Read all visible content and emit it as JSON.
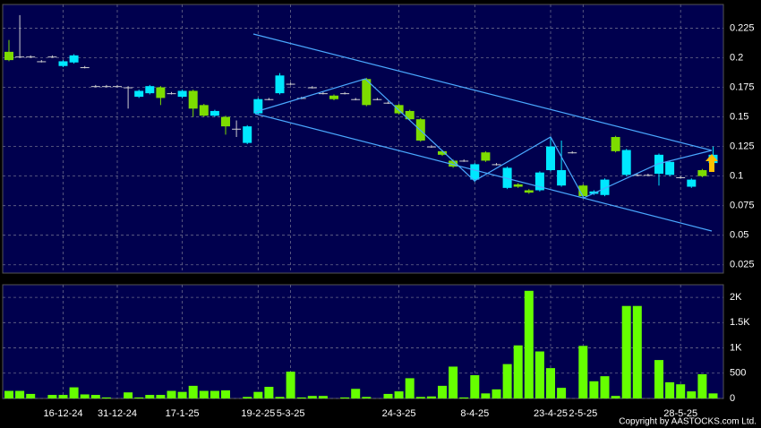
{
  "chart_data": {
    "type": "candlestick",
    "categories": [
      null,
      null,
      null,
      null,
      null,
      "16-12-24",
      null,
      null,
      null,
      null,
      "31-12-24",
      null,
      null,
      null,
      null,
      null,
      "17-1-25",
      null,
      null,
      null,
      null,
      null,
      null,
      "19-2-25",
      null,
      null,
      "5-3-25",
      null,
      null,
      null,
      null,
      null,
      null,
      null,
      null,
      null,
      "24-3-25",
      null,
      null,
      null,
      null,
      null,
      null,
      "8-4-25",
      null,
      null,
      null,
      null,
      null,
      null,
      "23-4-25",
      null,
      null,
      "2-5-25",
      null,
      null,
      null,
      null,
      null,
      null,
      null,
      null,
      "28-5-25",
      null,
      null,
      null
    ],
    "open": [
      0.205,
      0.201,
      0.201,
      0.197,
      0.201,
      0.193,
      0.196,
      0.192,
      0.176,
      0.176,
      0.176,
      0.175,
      0.167,
      0.17,
      0.175,
      0.17,
      0.167,
      0.172,
      0.16,
      0.151,
      0.15,
      0.14,
      0.128,
      0.153,
      0.165,
      0.17,
      0.178,
      0.166,
      0.175,
      0.17,
      0.168,
      0.17,
      0.165,
      0.182,
      0.165,
      0.162,
      0.16,
      0.155,
      0.148,
      0.125,
      0.121,
      0.113,
      0.113,
      0.097,
      0.12,
      0.11,
      0.09,
      0.093,
      0.088,
      0.088,
      0.105,
      0.092,
      0.12,
      0.092,
      0.085,
      0.084,
      0.133,
      0.101,
      0.101,
      0.101,
      0.102,
      0.101,
      0.099,
      0.091,
      0.105,
      0.111
    ],
    "high": [
      0.215,
      0.236,
      0.202,
      0.198,
      0.202,
      0.198,
      0.203,
      0.193,
      0.177,
      0.177,
      0.177,
      0.176,
      0.173,
      0.177,
      0.176,
      0.171,
      0.173,
      0.173,
      0.161,
      0.156,
      0.151,
      0.147,
      0.143,
      0.166,
      0.166,
      0.187,
      0.179,
      0.167,
      0.176,
      0.171,
      0.169,
      0.171,
      0.166,
      0.183,
      0.166,
      0.163,
      0.161,
      0.156,
      0.149,
      0.126,
      0.122,
      0.114,
      0.114,
      0.111,
      0.121,
      0.111,
      0.108,
      0.094,
      0.089,
      0.104,
      0.133,
      0.13,
      0.121,
      0.093,
      0.088,
      0.098,
      0.134,
      0.123,
      0.102,
      0.102,
      0.119,
      0.113,
      0.1,
      0.098,
      0.106,
      0.125
    ],
    "low": [
      0.197,
      0.2,
      0.2,
      0.196,
      0.2,
      0.192,
      0.195,
      0.191,
      0.175,
      0.175,
      0.175,
      0.157,
      0.166,
      0.169,
      0.16,
      0.169,
      0.166,
      0.15,
      0.15,
      0.15,
      0.135,
      0.133,
      0.127,
      0.152,
      0.164,
      0.169,
      0.177,
      0.165,
      0.174,
      0.169,
      0.164,
      0.169,
      0.164,
      0.159,
      0.164,
      0.161,
      0.152,
      0.147,
      0.129,
      0.124,
      0.117,
      0.107,
      0.112,
      0.095,
      0.112,
      0.109,
      0.089,
      0.09,
      0.085,
      0.087,
      0.104,
      0.091,
      0.119,
      0.082,
      0.084,
      0.083,
      0.12,
      0.1,
      0.1,
      0.1,
      0.092,
      0.1,
      0.098,
      0.09,
      0.099,
      0.11
    ],
    "close": [
      0.198,
      0.201,
      0.201,
      0.197,
      0.201,
      0.197,
      0.202,
      0.192,
      0.176,
      0.176,
      0.176,
      0.175,
      0.172,
      0.176,
      0.166,
      0.17,
      0.172,
      0.157,
      0.151,
      0.155,
      0.142,
      0.14,
      0.142,
      0.165,
      0.165,
      0.185,
      0.178,
      0.166,
      0.175,
      0.17,
      0.165,
      0.17,
      0.165,
      0.16,
      0.165,
      0.162,
      0.153,
      0.148,
      0.13,
      0.125,
      0.118,
      0.108,
      0.113,
      0.11,
      0.113,
      0.11,
      0.107,
      0.091,
      0.086,
      0.103,
      0.125,
      0.105,
      0.12,
      0.083,
      0.087,
      0.097,
      0.121,
      0.122,
      0.101,
      0.101,
      0.118,
      0.112,
      0.099,
      0.097,
      0.1,
      0.118
    ],
    "up_color": "#00e8ff",
    "down_color": "#7ddc00",
    "flat_color": "#cfcfcf",
    "ylim": [
      0.018,
      0.245
    ],
    "yticks": [
      0.025,
      0.05,
      0.075,
      0.1,
      0.125,
      0.15,
      0.175,
      0.2,
      0.225
    ],
    "grid": true,
    "volume": {
      "values": [
        150,
        150,
        90,
        0,
        70,
        70,
        220,
        80,
        70,
        20,
        0,
        120,
        20,
        70,
        70,
        150,
        130,
        250,
        150,
        150,
        160,
        0,
        30,
        130,
        230,
        30,
        530,
        20,
        50,
        50,
        0,
        20,
        190,
        30,
        0,
        90,
        140,
        400,
        30,
        40,
        250,
        630,
        20,
        460,
        100,
        180,
        680,
        1050,
        2130,
        930,
        600,
        210,
        0,
        1040,
        340,
        440,
        50,
        1830,
        1830,
        0,
        760,
        320,
        280,
        140,
        480,
        100
      ],
      "color": "#66ff00",
      "ylim": [
        0,
        2250
      ],
      "yticks": [
        0,
        500,
        {
          "value": 1000,
          "label": "1K"
        },
        {
          "value": 1500,
          "label": "1.5K"
        },
        {
          "value": 2000,
          "label": "2K"
        }
      ]
    },
    "copyright": "Copyright by AASTOCKS.com Ltd."
  }
}
